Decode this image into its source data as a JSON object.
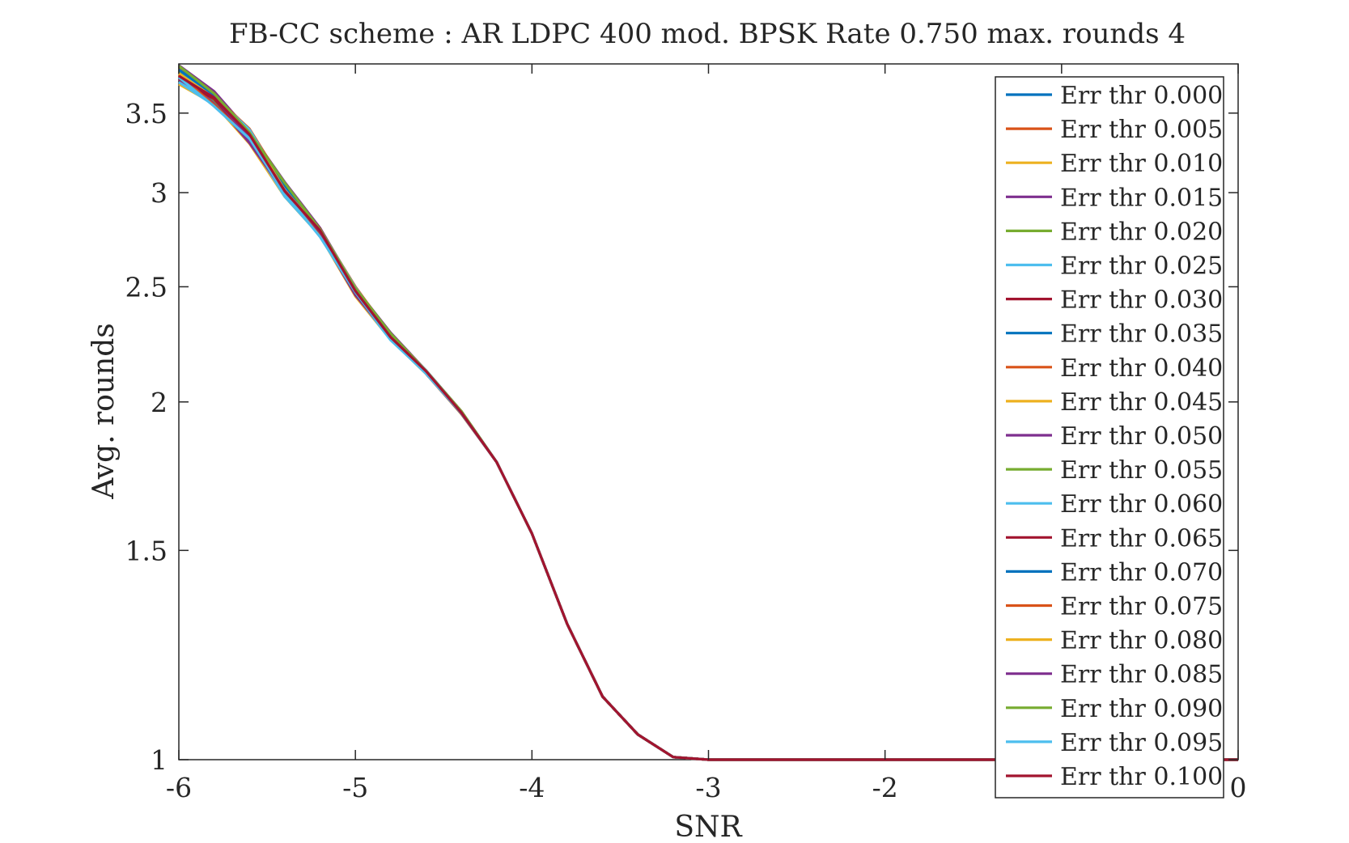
{
  "chart_data": {
    "type": "line",
    "title": "FB-CC scheme : AR LDPC 400 mod. BPSK Rate 0.750 max. rounds 4",
    "xlabel": "SNR",
    "ylabel": "Avg. rounds",
    "xlim": [
      -6,
      0
    ],
    "ylim": [
      1,
      3.85
    ],
    "yscale": "log",
    "x_ticks": [
      "-6",
      "-5",
      "-4",
      "-3",
      "-2",
      "-1",
      "0"
    ],
    "y_ticks": [
      {
        "value": 1,
        "label": "1"
      },
      {
        "value": 1.5,
        "label": "1.5"
      },
      {
        "value": 2,
        "label": "2"
      },
      {
        "value": 2.5,
        "label": "2.5"
      },
      {
        "value": 3,
        "label": "3"
      },
      {
        "value": 3.5,
        "label": "3.5"
      }
    ],
    "grid": false,
    "legend_position": "top-right",
    "x": [
      -6,
      -5.8,
      -5.6,
      -5.4,
      -5.2,
      -5,
      -4.8,
      -4.6,
      -4.4,
      -4.2,
      -4,
      -3.8,
      -3.6,
      -3.4,
      -3.2,
      -3,
      -2.8,
      -2.6,
      -2.4,
      -2.2,
      -2,
      -1.8,
      -1.6,
      -1.4,
      -1.2,
      -1,
      -0.8,
      -0.6,
      -0.4,
      -0.2,
      0
    ],
    "base_curve": [
      3.78,
      3.6,
      3.35,
      3.02,
      2.78,
      2.48,
      2.27,
      2.12,
      1.96,
      1.78,
      1.55,
      1.3,
      1.13,
      1.05,
      1.005,
      1.0,
      1.0,
      1.0,
      1.0,
      1.0,
      1.0,
      1.0,
      1.0,
      1.0,
      1.0,
      1.0,
      1.0,
      1.0,
      1.0,
      1.0,
      1.0
    ],
    "series": [
      {
        "name": "Err thr 0.000",
        "color": "#0072BD",
        "offset": 0.03
      },
      {
        "name": "Err thr 0.005",
        "color": "#D95319",
        "offset": -0.02
      },
      {
        "name": "Err thr 0.010",
        "color": "#EDB120",
        "offset": -0.06
      },
      {
        "name": "Err thr 0.015",
        "color": "#7E2F8E",
        "offset": 0.05
      },
      {
        "name": "Err thr 0.020",
        "color": "#77AC30",
        "offset": -0.03
      },
      {
        "name": "Err thr 0.025",
        "color": "#4DBEEE",
        "offset": -0.05
      },
      {
        "name": "Err thr 0.030",
        "color": "#A2142F",
        "offset": 0.02
      },
      {
        "name": "Err thr 0.035",
        "color": "#0072BD",
        "offset": -0.01
      },
      {
        "name": "Err thr 0.040",
        "color": "#D95319",
        "offset": 0.04
      },
      {
        "name": "Err thr 0.045",
        "color": "#EDB120",
        "offset": 0.01
      },
      {
        "name": "Err thr 0.050",
        "color": "#7E2F8E",
        "offset": -0.04
      },
      {
        "name": "Err thr 0.055",
        "color": "#77AC30",
        "offset": 0.0
      },
      {
        "name": "Err thr 0.060",
        "color": "#4DBEEE",
        "offset": 0.03
      },
      {
        "name": "Err thr 0.065",
        "color": "#A2142F",
        "offset": -0.02
      },
      {
        "name": "Err thr 0.070",
        "color": "#0072BD",
        "offset": 0.02
      },
      {
        "name": "Err thr 0.075",
        "color": "#D95319",
        "offset": -0.03
      },
      {
        "name": "Err thr 0.080",
        "color": "#EDB120",
        "offset": 0.01
      },
      {
        "name": "Err thr 0.085",
        "color": "#7E2F8E",
        "offset": -0.01
      },
      {
        "name": "Err thr 0.090",
        "color": "#77AC30",
        "offset": 0.04
      },
      {
        "name": "Err thr 0.095",
        "color": "#4DBEEE",
        "offset": -0.04
      },
      {
        "name": "Err thr 0.100",
        "color": "#A2142F",
        "offset": 0.0
      }
    ]
  }
}
